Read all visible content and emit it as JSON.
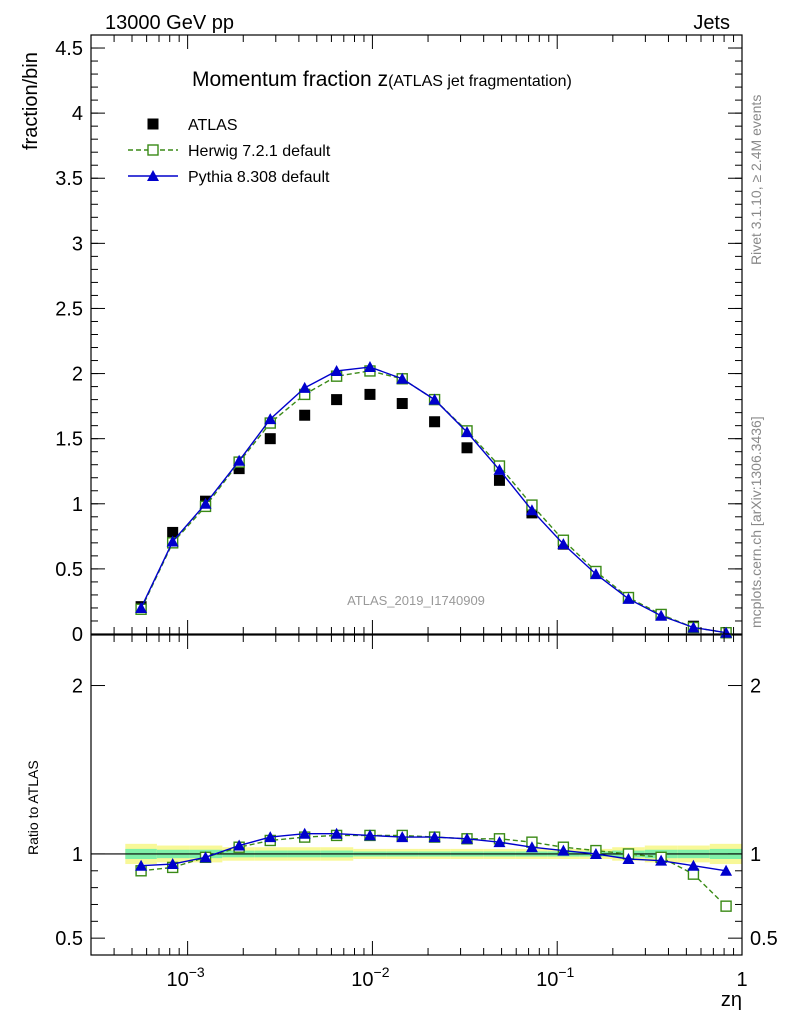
{
  "header": {
    "left": "13000 GeV pp",
    "right": "Jets"
  },
  "side_labels": {
    "rivet": "Rivet 3.1.10, ≥ 2.4M events",
    "mcplots": "mcplots.cern.ch [arXiv:1306.3436]"
  },
  "chart_data": {
    "type": "scatter",
    "title_main": "Momentum fraction z",
    "title_sub": "(ATLAS jet fragmentation)",
    "analysis_label": "ATLAS_2019_I1740909",
    "xlabel": "zη",
    "ylabel_main": "fraction/bin",
    "ylabel_ratio": "Ratio to ATLAS",
    "x_scale": "log",
    "xlim": [
      0.0003,
      1
    ],
    "ylim_main": [
      0,
      4.6
    ],
    "ylim_ratio": [
      0.4,
      2.3
    ],
    "main_ticks": [
      {
        "value": 0,
        "label": "0"
      },
      {
        "value": 0.5,
        "label": "0.5"
      },
      {
        "value": 1,
        "label": "1"
      },
      {
        "value": 1.5,
        "label": "1.5"
      },
      {
        "value": 2,
        "label": "2"
      },
      {
        "value": 2.5,
        "label": "2.5"
      },
      {
        "value": 3,
        "label": "3"
      },
      {
        "value": 3.5,
        "label": "3.5"
      },
      {
        "value": 4,
        "label": "4"
      },
      {
        "value": 4.5,
        "label": "4.5"
      }
    ],
    "ratio_ticks": [
      {
        "value": 0.5,
        "label": "0.5"
      },
      {
        "value": 1,
        "label": "1"
      },
      {
        "value": 2,
        "label": "2"
      }
    ],
    "x_ticks": [
      {
        "value": 0.001,
        "base": "10",
        "exp": "−3"
      },
      {
        "value": 0.01,
        "base": "10",
        "exp": "−2"
      },
      {
        "value": 0.1,
        "base": "10",
        "exp": "−1"
      },
      {
        "value": 1,
        "base": "1",
        "exp": ""
      }
    ],
    "x": [
      0.00056,
      0.00083,
      0.00125,
      0.0019,
      0.0028,
      0.0043,
      0.0064,
      0.0097,
      0.0145,
      0.0217,
      0.0325,
      0.0487,
      0.073,
      0.108,
      0.162,
      0.243,
      0.365,
      0.546,
      0.82
    ],
    "series": [
      {
        "name": "ATLAS",
        "color": "#000000",
        "marker": "square-filled",
        "values": [
          0.21,
          0.78,
          1.02,
          1.27,
          1.5,
          1.68,
          1.8,
          1.84,
          1.77,
          1.63,
          1.43,
          1.18,
          0.93,
          0.69,
          0.47,
          0.28,
          0.15,
          0.06,
          0.01
        ]
      },
      {
        "name": "Herwig 7.2.1 default",
        "color": "#3a8a16",
        "marker": "square-open",
        "line": "dashed",
        "values": [
          0.19,
          0.7,
          0.98,
          1.32,
          1.62,
          1.84,
          1.98,
          2.02,
          1.96,
          1.8,
          1.56,
          1.29,
          0.99,
          0.72,
          0.48,
          0.28,
          0.15,
          0.05,
          0.01
        ],
        "ratio": [
          0.9,
          0.92,
          0.98,
          1.04,
          1.08,
          1.1,
          1.11,
          1.11,
          1.11,
          1.1,
          1.09,
          1.09,
          1.07,
          1.04,
          1.02,
          1.0,
          0.98,
          0.88,
          0.69
        ]
      },
      {
        "name": "Pythia 8.308 default",
        "color": "#0000cc",
        "marker": "triangle-filled",
        "line": "solid",
        "values": [
          0.2,
          0.71,
          1.0,
          1.33,
          1.65,
          1.89,
          2.02,
          2.05,
          1.96,
          1.8,
          1.55,
          1.26,
          0.95,
          0.69,
          0.46,
          0.27,
          0.14,
          0.05,
          0.01
        ],
        "ratio": [
          0.93,
          0.94,
          0.98,
          1.05,
          1.1,
          1.12,
          1.12,
          1.11,
          1.1,
          1.1,
          1.09,
          1.07,
          1.04,
          1.02,
          1.0,
          0.97,
          0.96,
          0.93,
          0.9
        ]
      }
    ],
    "band_colors": {
      "inner": "#7ff0a8",
      "outer": "#f8f898"
    }
  }
}
